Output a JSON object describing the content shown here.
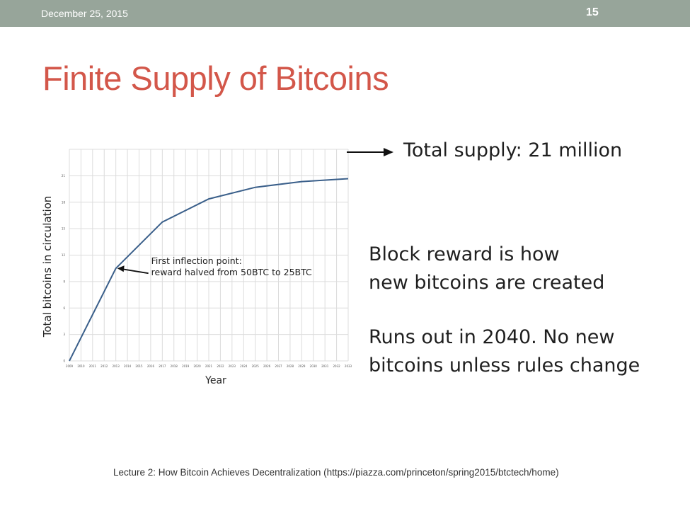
{
  "header": {
    "date": "December 25, 2015",
    "slide_number": "15"
  },
  "slide": {
    "title": "Finite Supply of Bitcoins",
    "total_supply_callout": "Total supply: 21 million",
    "block_reward_text": [
      "Block reward is how",
      "new bitcoins are created"
    ],
    "runs_out_text": [
      "Runs out in 2040. No new",
      "bitcoins unless rules change"
    ],
    "footer": "Lecture 2: How Bitcoin Achieves Decentralization (https://piazza.com/princeton/spring2015/btctech/home)"
  },
  "colors": {
    "header_bar": "#97a59a",
    "title": "#d3574a",
    "line": "#3a5f8a",
    "grid": "#dcdcdc"
  },
  "chart_data": {
    "type": "line",
    "title": "",
    "xlabel": "Year",
    "ylabel": "Total bitcoins in circulation",
    "grid": true,
    "xlim": [
      2009,
      2033
    ],
    "ylim": [
      0,
      24
    ],
    "x_ticks": [
      "2009",
      "2010",
      "2011",
      "2012",
      "2013",
      "2014",
      "2015",
      "2016",
      "2017",
      "2018",
      "2019",
      "2020",
      "2021",
      "2022",
      "2023",
      "2024",
      "2025",
      "2026",
      "2027",
      "2028",
      "2029",
      "2030",
      "2031",
      "2032",
      "2033"
    ],
    "y_ticks": [
      "0",
      "3",
      "6",
      "9",
      "12",
      "15",
      "18",
      "21"
    ],
    "series": [
      {
        "x": [
          2009,
          2013,
          2017,
          2021,
          2025,
          2029,
          2033
        ],
        "values": [
          0,
          10.5,
          15.75,
          18.375,
          19.6875,
          20.34,
          20.67
        ]
      }
    ],
    "annotations": [
      {
        "text": [
          "First inflection point:",
          "reward halved from 50BTC to 25BTC"
        ],
        "x": 2013,
        "y": 10.5
      }
    ]
  }
}
